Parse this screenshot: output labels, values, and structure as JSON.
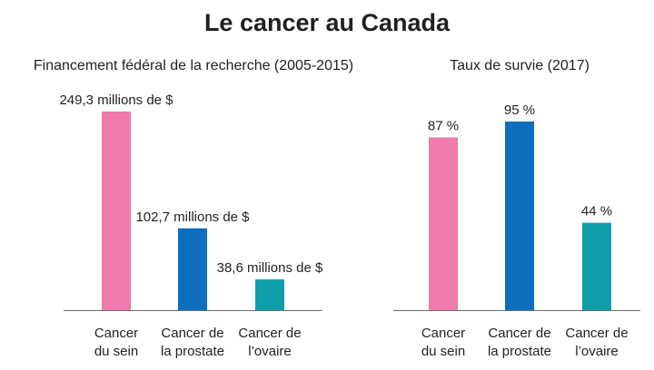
{
  "page_title": "Le cancer au Canada",
  "chart_data": [
    {
      "type": "bar",
      "title": "Financement fédéral de la recherche (2005-2015)",
      "categories": [
        [
          "Cancer",
          "du sein"
        ],
        [
          "Cancer de",
          "la prostate"
        ],
        [
          "Cancer de",
          "l’ovaire"
        ]
      ],
      "values": [
        249.3,
        102.7,
        38.6
      ],
      "value_labels": [
        "249,3 millions de $",
        "102,7 millions de $",
        "38,6 millions de $"
      ],
      "colors": [
        "#f07aab",
        "#0f6fbf",
        "#0e9ea8"
      ],
      "ylim": [
        0,
        249.3
      ],
      "xlabel": "",
      "ylabel": "",
      "grid": false
    },
    {
      "type": "bar",
      "title": "Taux de survie (2017)",
      "categories": [
        [
          "Cancer",
          "du sein"
        ],
        [
          "Cancer de",
          "la prostate"
        ],
        [
          "Cancer de",
          "l’ovaire"
        ]
      ],
      "values": [
        87,
        95,
        44
      ],
      "value_labels": [
        "87 %",
        "95 %",
        "44 %"
      ],
      "colors": [
        "#f07aab",
        "#0f6fbf",
        "#0e9ea8"
      ],
      "ylim": [
        0,
        95
      ],
      "xlabel": "",
      "ylabel": "",
      "grid": false
    }
  ]
}
